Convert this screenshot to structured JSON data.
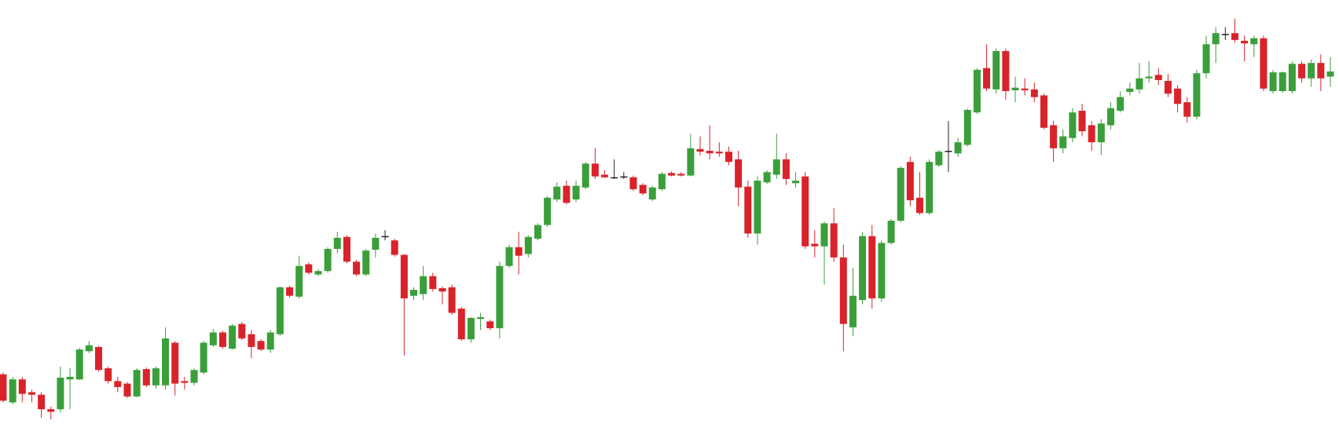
{
  "chart_data": {
    "type": "candlestick",
    "up_color": "#3a9f3a",
    "down_color": "#d9232a",
    "doji_color": "#222222",
    "ylim": [
      0,
      500
    ],
    "open": [
      63,
      30,
      57,
      42,
      39,
      22,
      22,
      57,
      57,
      90,
      95,
      70,
      55,
      52,
      37,
      69,
      50,
      50,
      100,
      55,
      53,
      65,
      97,
      112,
      93,
      122,
      110,
      102,
      92,
      110,
      165,
      154,
      192,
      180,
      184,
      210,
      224,
      195,
      180,
      209,
      225,
      220,
      203,
      155,
      157,
      178,
      164,
      165,
      140,
      104,
      128,
      125,
      117,
      190,
      212,
      204,
      222,
      238,
      268,
      284,
      268,
      282,
      310,
      297,
      294,
      295,
      294,
      285,
      268,
      280,
      299,
      298,
      296,
      327,
      325,
      324,
      324,
      315,
      283,
      228,
      288,
      297,
      315,
      287,
      295,
      216,
      213,
      240,
      200,
      118,
      150,
      225,
      152,
      217,
      243,
      312,
      270,
      252,
      308,
      325,
      322,
      332,
      370,
      422,
      397,
      442,
      396,
      398,
      397,
      390,
      355,
      328,
      340,
      372,
      355,
      335,
      355,
      372,
      394,
      397,
      410,
      414,
      407,
      398,
      382,
      365,
      416,
      450,
      462,
      463,
      454,
      450,
      457,
      395,
      395,
      395,
      427,
      410,
      428,
      412
    ],
    "high": [
      65,
      60,
      60,
      45,
      42,
      25,
      72,
      70,
      94,
      102,
      96,
      72,
      60,
      54,
      70,
      71,
      72,
      118,
      102,
      60,
      70,
      102,
      116,
      114,
      122,
      124,
      115,
      104,
      115,
      166,
      167,
      202,
      194,
      186,
      212,
      230,
      226,
      197,
      210,
      228,
      232,
      222,
      204,
      165,
      190,
      182,
      166,
      168,
      142,
      130,
      135,
      127,
      195,
      215,
      230,
      226,
      240,
      272,
      288,
      290,
      290,
      312,
      328,
      302,
      315,
      300,
      296,
      287,
      284,
      300,
      301,
      300,
      345,
      342,
      355,
      335,
      330,
      325,
      290,
      295,
      302,
      345,
      322,
      300,
      300,
      232,
      242,
      258,
      215,
      188,
      230,
      238,
      220,
      245,
      307,
      318,
      300,
      315,
      326,
      360,
      340,
      375,
      422,
      450,
      445,
      445,
      412,
      410,
      405,
      392,
      360,
      350,
      375,
      380,
      360,
      362,
      382,
      395,
      405,
      428,
      430,
      422,
      415,
      402,
      388,
      420,
      460,
      470,
      470,
      480,
      460,
      460,
      460,
      420,
      418,
      430,
      430,
      432,
      438,
      435
    ],
    "low": [
      30,
      28,
      30,
      30,
      12,
      10,
      18,
      22,
      56,
      88,
      66,
      52,
      42,
      35,
      36,
      48,
      46,
      45,
      38,
      45,
      50,
      63,
      95,
      93,
      92,
      103,
      82,
      90,
      88,
      108,
      153,
      152,
      180,
      178,
      182,
      205,
      193,
      178,
      178,
      200,
      220,
      201,
      85,
      150,
      150,
      160,
      145,
      133,
      102,
      100,
      115,
      115,
      105,
      188,
      180,
      200,
      220,
      236,
      265,
      262,
      265,
      280,
      292,
      293,
      292,
      292,
      278,
      273,
      266,
      278,
      295,
      295,
      295,
      320,
      315,
      318,
      308,
      260,
      223,
      215,
      286,
      292,
      285,
      282,
      210,
      200,
      168,
      195,
      90,
      108,
      145,
      140,
      148,
      215,
      241,
      260,
      250,
      250,
      306,
      300,
      318,
      330,
      368,
      395,
      392,
      385,
      382,
      390,
      382,
      350,
      312,
      322,
      335,
      342,
      325,
      320,
      350,
      370,
      390,
      392,
      405,
      402,
      388,
      370,
      358,
      362,
      410,
      428,
      455,
      452,
      430,
      435,
      395,
      392,
      393,
      392,
      405,
      400,
      395,
      400
    ],
    "close": [
      32,
      57,
      40,
      39,
      22,
      19,
      59,
      60,
      92,
      97,
      68,
      55,
      48,
      37,
      68,
      50,
      70,
      105,
      52,
      53,
      68,
      100,
      112,
      95,
      120,
      105,
      95,
      92,
      112,
      165,
      155,
      190,
      182,
      184,
      210,
      223,
      195,
      180,
      208,
      223,
      225,
      203,
      152,
      162,
      178,
      163,
      160,
      135,
      104,
      129,
      130,
      117,
      190,
      212,
      202,
      224,
      238,
      270,
      283,
      264,
      284,
      310,
      295,
      294,
      294,
      295,
      280,
      275,
      282,
      298,
      296,
      296,
      328,
      324,
      322,
      322,
      312,
      282,
      228,
      290,
      300,
      315,
      292,
      290,
      213,
      213,
      240,
      200,
      122,
      155,
      225,
      152,
      217,
      243,
      305,
      267,
      252,
      312,
      324,
      325,
      335,
      373,
      420,
      398,
      442,
      395,
      399,
      396,
      388,
      352,
      328,
      342,
      370,
      348,
      335,
      357,
      375,
      388,
      398,
      410,
      412,
      408,
      392,
      380,
      365,
      416,
      450,
      463,
      462,
      455,
      451,
      457,
      398,
      417,
      417,
      427,
      410,
      428,
      410,
      418
    ]
  }
}
